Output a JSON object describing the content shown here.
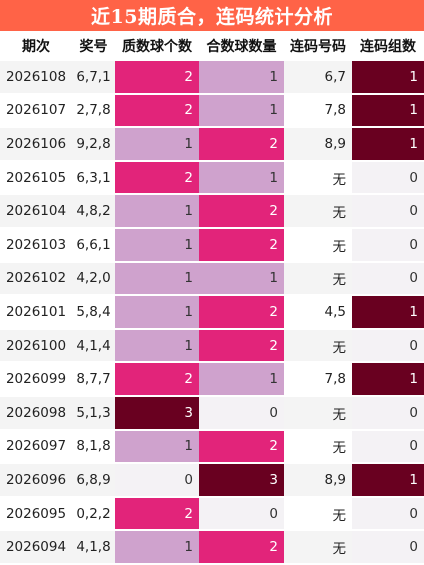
{
  "title": "近15期质合，连码统计分析",
  "headers": [
    "期次",
    "奖号",
    "质数球个数",
    "合数球数量",
    "连码号码",
    "连码组数"
  ],
  "rows": [
    {
      "issue": "2026108",
      "nums": "6,7,1",
      "prime": 2,
      "composite": 1,
      "pair": "6,7",
      "groups": 1
    },
    {
      "issue": "2026107",
      "nums": "2,7,8",
      "prime": 2,
      "composite": 1,
      "pair": "7,8",
      "groups": 1
    },
    {
      "issue": "2026106",
      "nums": "9,2,8",
      "prime": 1,
      "composite": 2,
      "pair": "8,9",
      "groups": 1
    },
    {
      "issue": "2026105",
      "nums": "6,3,1",
      "prime": 2,
      "composite": 1,
      "pair": "无",
      "groups": 0
    },
    {
      "issue": "2026104",
      "nums": "4,8,2",
      "prime": 1,
      "composite": 2,
      "pair": "无",
      "groups": 0
    },
    {
      "issue": "2026103",
      "nums": "6,6,1",
      "prime": 1,
      "composite": 2,
      "pair": "无",
      "groups": 0
    },
    {
      "issue": "2026102",
      "nums": "4,2,0",
      "prime": 1,
      "composite": 1,
      "pair": "无",
      "groups": 0
    },
    {
      "issue": "2026101",
      "nums": "5,8,4",
      "prime": 1,
      "composite": 2,
      "pair": "4,5",
      "groups": 1
    },
    {
      "issue": "2026100",
      "nums": "4,1,4",
      "prime": 1,
      "composite": 2,
      "pair": "无",
      "groups": 0
    },
    {
      "issue": "2026099",
      "nums": "8,7,7",
      "prime": 2,
      "composite": 1,
      "pair": "7,8",
      "groups": 1
    },
    {
      "issue": "2026098",
      "nums": "5,1,3",
      "prime": 3,
      "composite": 0,
      "pair": "无",
      "groups": 0
    },
    {
      "issue": "2026097",
      "nums": "8,1,8",
      "prime": 1,
      "composite": 2,
      "pair": "无",
      "groups": 0
    },
    {
      "issue": "2026096",
      "nums": "6,8,9",
      "prime": 0,
      "composite": 3,
      "pair": "8,9",
      "groups": 1
    },
    {
      "issue": "2026095",
      "nums": "0,2,2",
      "prime": 2,
      "composite": 0,
      "pair": "无",
      "groups": 0
    },
    {
      "issue": "2026094",
      "nums": "4,1,8",
      "prime": 1,
      "composite": 2,
      "pair": "无",
      "groups": 0
    }
  ],
  "colors": {
    "title_bg": "#ff6347",
    "count_0": "#f4f2f5",
    "count_1": "#cfa2cd",
    "count_2": "#e2247a",
    "count_3": "#690020",
    "group_1": "#690020"
  }
}
